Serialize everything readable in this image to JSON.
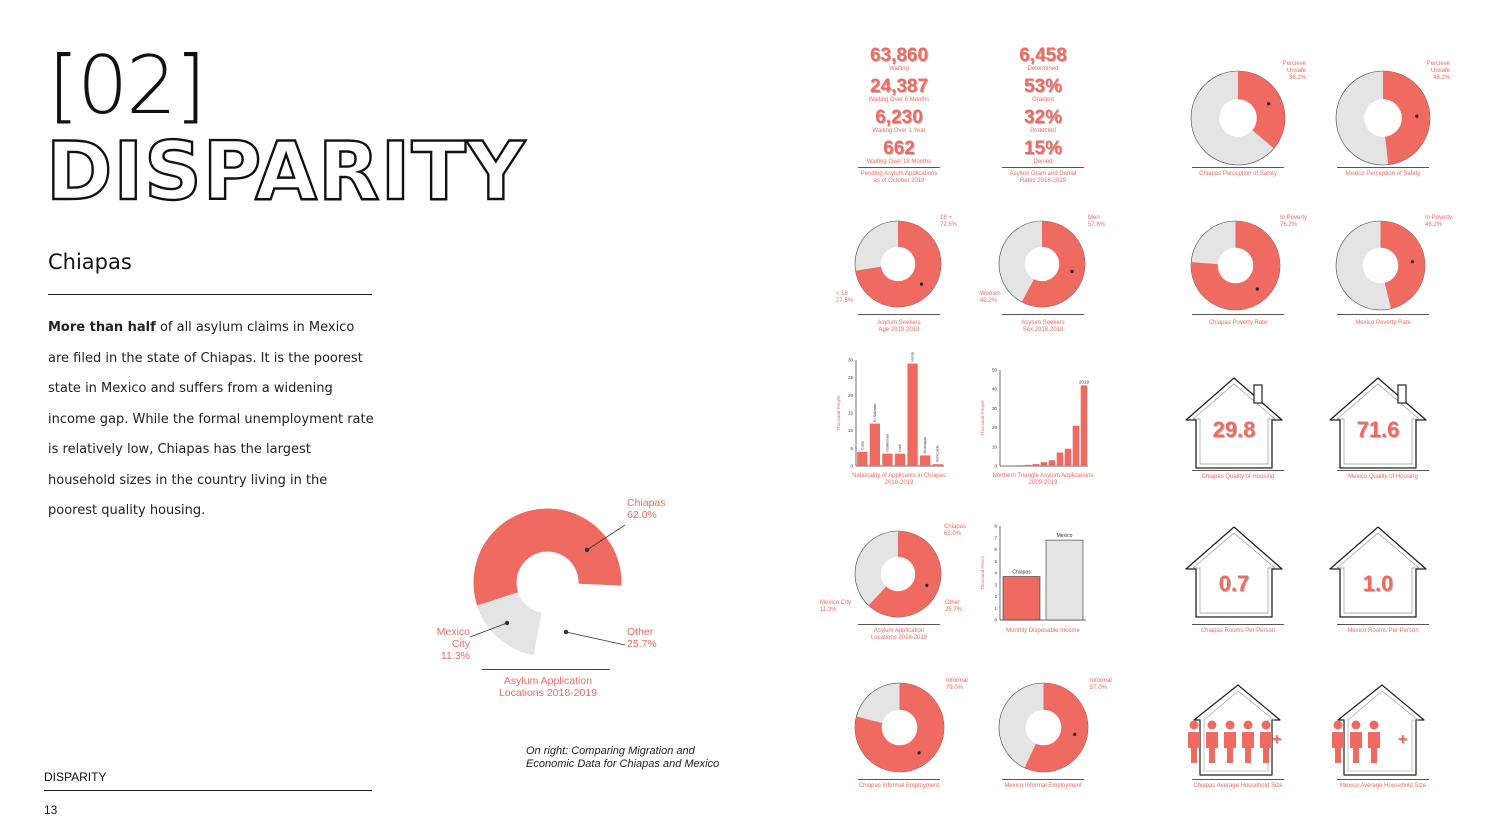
{
  "header": {
    "number": "[02]",
    "title": "DISPARITY",
    "subtitle": "Chiapas"
  },
  "body": {
    "bold_lead": "More than half",
    "text": "of all asylum claims in Mexico are filed in the state of Chiapas. It is the poorest state in Mexico and suffers from a widening income gap. While the formal unemployment rate is relatively low, Chiapas has the largest household sizes in the country living in the poorest quality housing."
  },
  "caption": {
    "line1": "On right: Comparing Migration and",
    "line2": "Economic Data for Chiapas and Mexico"
  },
  "footer": {
    "label": "DISPARITY",
    "page": "13"
  },
  "colors": {
    "accent": "#ef6a60",
    "neutral": "#e4e4e4",
    "ink": "#111111"
  },
  "big_donut": {
    "title1": "Asylum Application",
    "title2": "Locations 2018-2019",
    "chiapas": {
      "name": "Chiapas",
      "pct": "62.0%"
    },
    "mexico_city": {
      "name": "Mexico City",
      "pct": "11.3%"
    },
    "other": {
      "name": "Other",
      "pct": "25.7%"
    }
  },
  "pending": {
    "items": [
      {
        "value": "63,860",
        "label": "Waiting"
      },
      {
        "value": "24,387",
        "label": "Waiting Over 6 Months"
      },
      {
        "value": "6,230",
        "label": "Waiting Over 1 Year"
      },
      {
        "value": "662",
        "label": "Waiting Over 18 Months"
      }
    ],
    "cap1": "Pending Asylum Applications",
    "cap2": "as of October 2019"
  },
  "grants": {
    "items": [
      {
        "value": "6,458",
        "label": "Determined"
      },
      {
        "value": "53%",
        "label": "Granted"
      },
      {
        "value": "32%",
        "label": "Protected"
      },
      {
        "value": "15%",
        "label": "Denied"
      }
    ],
    "cap1": "Asylum Grant and Denial",
    "cap2": "Rates 2018-2019"
  },
  "donuts": {
    "safety_chiapas": {
      "l1": "Percieve",
      "l2": "Unsafe",
      "pct": "36.2%",
      "cap1": "Chiapas Perception of Safety",
      "cap2": ""
    },
    "safety_mexico": {
      "l1": "Percieve",
      "l2": "Unsafe",
      "pct": "48.2%",
      "cap1": "Mexico Perception of Safety",
      "cap2": ""
    },
    "age": {
      "a_name": "18 +",
      "a_pct": "72.5%",
      "b_name": "< 18",
      "b_pct": "27.5%",
      "cap1": "Asylum Seekers",
      "cap2": "Age 2018-2019"
    },
    "sex": {
      "a_name": "Men",
      "a_pct": "57.8%",
      "b_name": "Women",
      "b_pct": "42.2%",
      "cap1": "Asylum Seekers",
      "cap2": "Sex 2018-2019"
    },
    "poverty_chiapas": {
      "l1": "In Poverty",
      "pct": "76.2%",
      "cap1": "Chiapas Poverty Rate"
    },
    "poverty_mexico": {
      "l1": "In Poverty",
      "pct": "46.2%",
      "cap1": "Mexico Poverty Rate"
    },
    "loc_small": {
      "a_name": "Chiapas",
      "a_pct": "62.0%",
      "b_name": "Mexico City",
      "b_pct": "11.3%",
      "c_name": "Other",
      "c_pct": "25.7%",
      "cap1": "Asylum Application",
      "cap2": "Locations 2018-2019"
    },
    "informal_chiapas": {
      "l1": "Informal",
      "pct": "79.0%",
      "cap1": "Chiapas Informal Employment"
    },
    "informal_mexico": {
      "l1": "Informal",
      "pct": "57.0%",
      "cap1": "Mexico Informal Employment"
    }
  },
  "houses": {
    "quality_chiapas": {
      "value": "29.8",
      "cap": "Chiapas Quality of Housing"
    },
    "quality_mexico": {
      "value": "71.6",
      "cap": "Mexico Quality of Housing"
    },
    "rooms_chiapas": {
      "value": "0.7",
      "cap": "Chiapas Rooms Per Person"
    },
    "rooms_mexico": {
      "value": "1.0",
      "cap": "Mexico Rooms Per Person"
    },
    "household_chiapas": {
      "plus": "+",
      "cap": "Chiapas Average Household Size"
    },
    "household_mexico": {
      "plus": "+",
      "cap": "Mexico Average Household Size"
    }
  },
  "chart_data": [
    {
      "type": "bar",
      "title": "Nationality of Applicants in Chiapas 2018-2019",
      "ylabel": "Thousand People",
      "categories": [
        "Cuba",
        "El Salvador",
        "Guatemala",
        "Haiti",
        "Honduras",
        "Nicaragua",
        "Venezuela"
      ],
      "values": [
        4,
        12,
        3.5,
        3.5,
        29,
        3,
        0.5
      ],
      "ylim": [
        0,
        30
      ],
      "yticks": [
        "0",
        "5",
        "10",
        "15",
        "20",
        "25",
        "30"
      ]
    },
    {
      "type": "bar",
      "title": "Northern Triangle Asylum Applications 2009-2019",
      "ylabel": "Thousand People",
      "categories": [
        "2009",
        "2010",
        "2011",
        "2012",
        "2013",
        "2014",
        "2015",
        "2016",
        "2017",
        "2018",
        "2019"
      ],
      "values": [
        0.2,
        0.3,
        0.4,
        0.6,
        1,
        2,
        3,
        7,
        9,
        21,
        42
      ],
      "ylim": [
        0,
        50
      ],
      "yticks": [
        "0",
        "10",
        "20",
        "30",
        "40",
        "50"
      ],
      "highlight_label": "2019"
    },
    {
      "type": "bar",
      "title": "Monthly Disposable Income",
      "ylabel": "Thousand Pesos",
      "categories": [
        "Chiapas",
        "Mexico"
      ],
      "values": [
        3.7,
        6.8
      ],
      "ylim": [
        0,
        8
      ],
      "yticks": [
        "0",
        "1",
        "2",
        "3",
        "4",
        "5",
        "6",
        "7",
        "8"
      ]
    }
  ]
}
